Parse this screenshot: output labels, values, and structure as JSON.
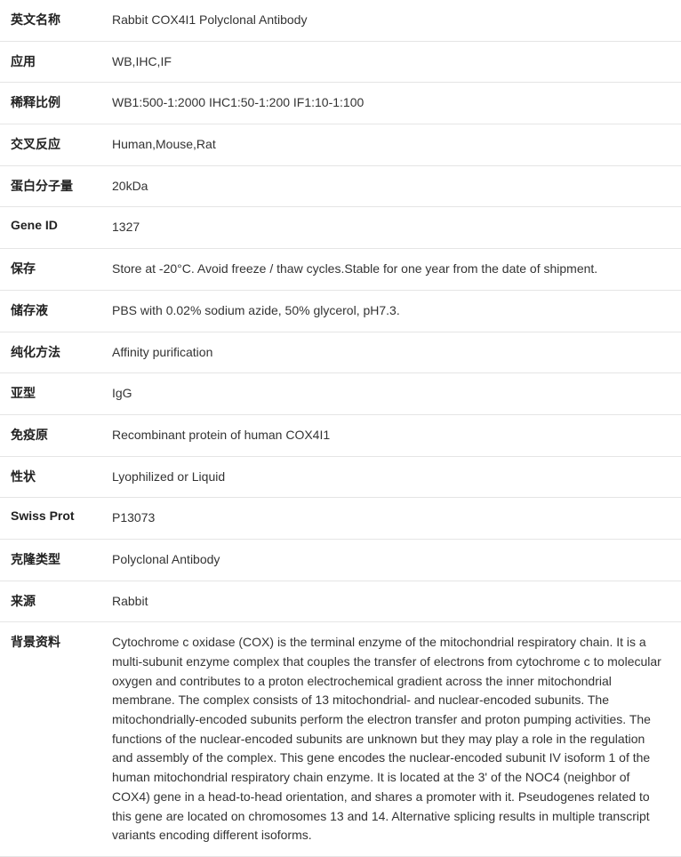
{
  "rows": [
    {
      "label": "英文名称",
      "value": "Rabbit COX4I1 Polyclonal Antibody"
    },
    {
      "label": "应用",
      "value": "WB,IHC,IF"
    },
    {
      "label": "稀释比例",
      "value": "WB1:500-1:2000 IHC1:50-1:200 IF1:10-1:100"
    },
    {
      "label": "交叉反应",
      "value": "Human,Mouse,Rat"
    },
    {
      "label": "蛋白分子量",
      "value": "20kDa"
    },
    {
      "label": "Gene ID",
      "value": "1327"
    },
    {
      "label": "保存",
      "value": "Store at -20°C. Avoid freeze / thaw cycles.Stable for one year from the date of shipment."
    },
    {
      "label": "储存液",
      "value": "PBS with 0.02% sodium azide, 50% glycerol, pH7.3."
    },
    {
      "label": "纯化方法",
      "value": "Affinity purification"
    },
    {
      "label": "亚型",
      "value": "IgG"
    },
    {
      "label": "免疫原",
      "value": "Recombinant protein of human COX4I1"
    },
    {
      "label": "性状",
      "value": "Lyophilized or Liquid"
    },
    {
      "label": "Swiss Prot",
      "value": "P13073"
    },
    {
      "label": "克隆类型",
      "value": "Polyclonal Antibody"
    },
    {
      "label": "来源",
      "value": "Rabbit"
    },
    {
      "label": "背景资料",
      "value": "Cytochrome c oxidase (COX) is the terminal enzyme of the mitochondrial respiratory chain. It is a multi-subunit enzyme complex that couples the transfer of electrons from cytochrome c to molecular oxygen and contributes to a proton electrochemical gradient across the inner mitochondrial membrane. The complex consists of 13 mitochondrial- and nuclear-encoded subunits. The mitochondrially-encoded subunits perform the electron transfer and proton pumping activities. The functions of the nuclear-encoded subunits are unknown but they may play a role in the regulation and assembly of the complex. This gene encodes the nuclear-encoded subunit IV isoform 1 of the human mitochondrial respiratory chain enzyme. It is located at the 3' of the NOC4 (neighbor of COX4) gene in a head-to-head orientation, and shares a promoter with it. Pseudogenes related to this gene are located on chromosomes 13 and 14. Alternative splicing results in multiple transcript variants encoding different isoforms."
    }
  ]
}
